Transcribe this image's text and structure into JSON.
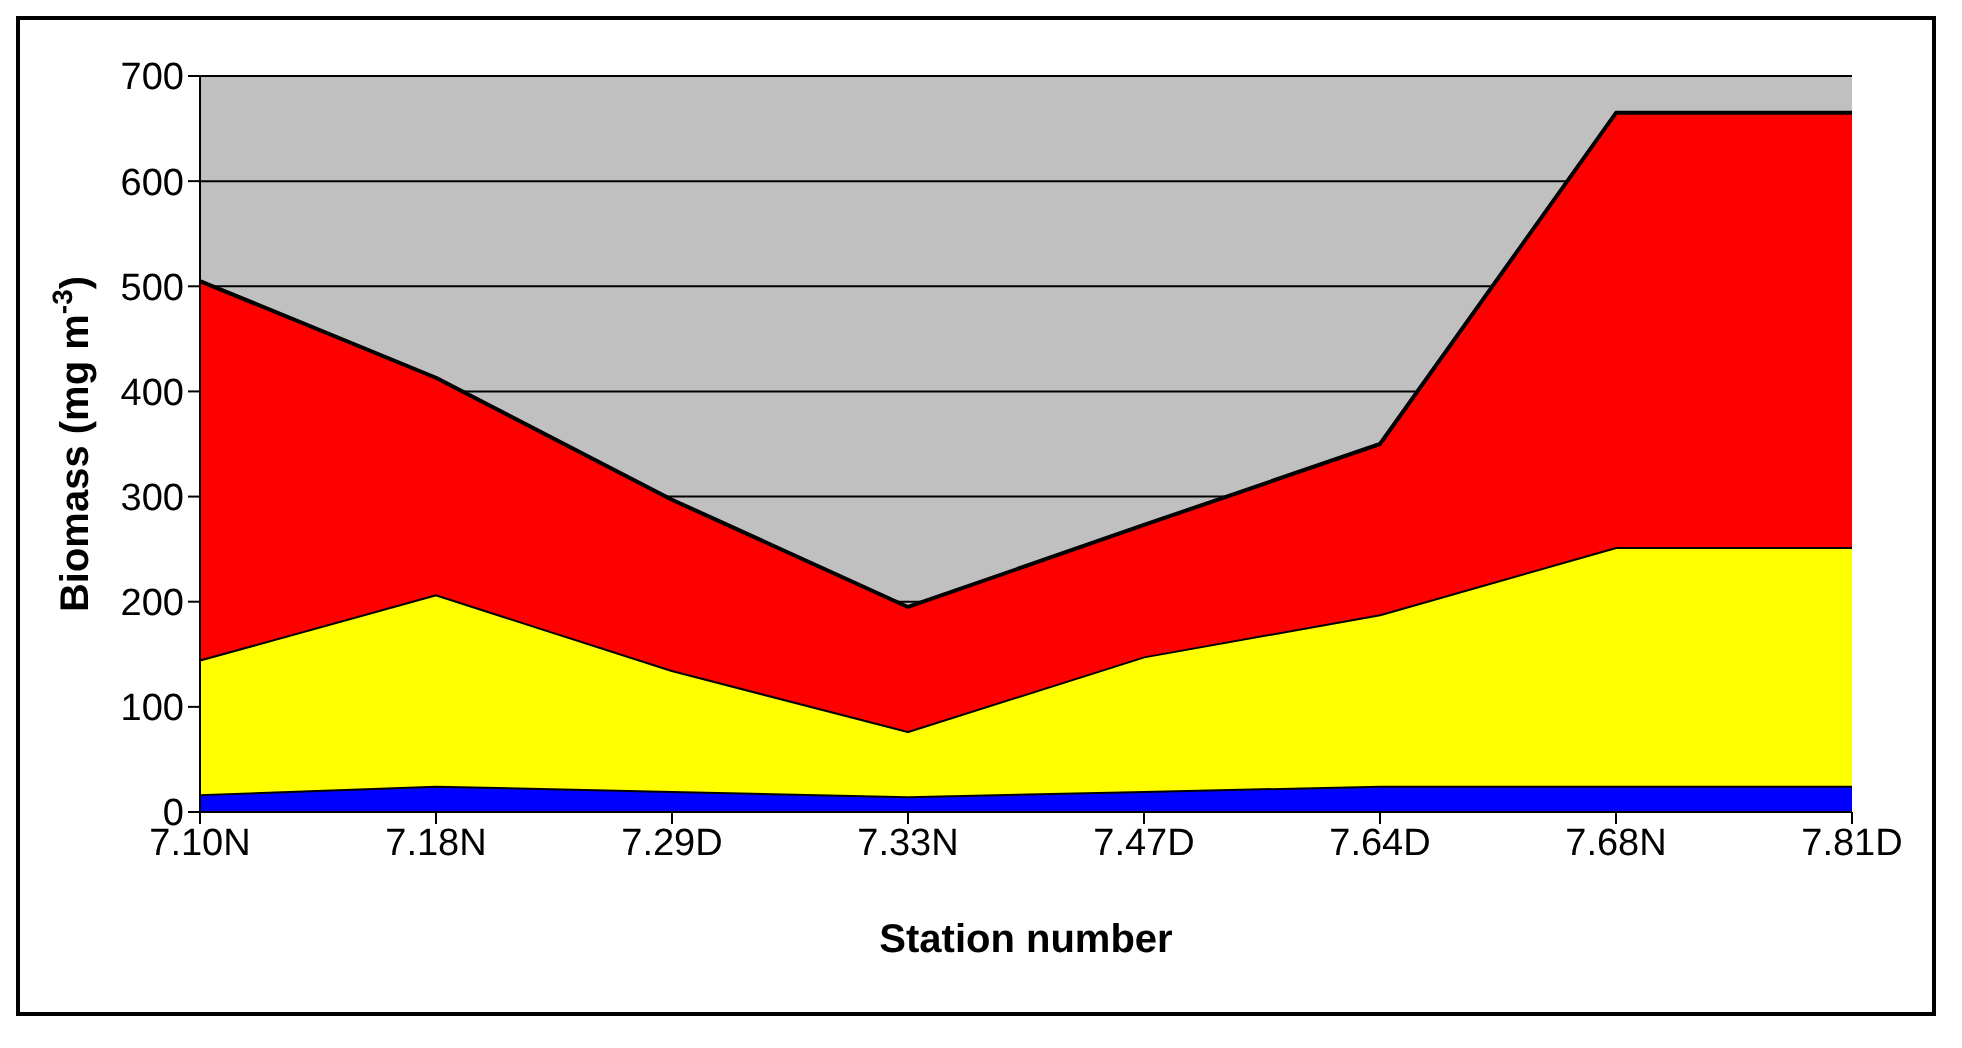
{
  "chart_data": {
    "type": "area",
    "stacked": true,
    "xlabel": "Station number",
    "ylabel": "Biomass (mg m$^{-3}$)",
    "categories": [
      "7.10N",
      "7.18N",
      "7.29D",
      "7.33N",
      "7.47D",
      "7.64D",
      "7.68N",
      "7.81D"
    ],
    "series": [
      {
        "color": "#0000ff",
        "values": [
          17,
          25,
          20,
          15,
          20,
          25,
          25,
          25
        ]
      },
      {
        "color": "#ffff00",
        "values": [
          128,
          182,
          115,
          62,
          128,
          163,
          227,
          227
        ]
      },
      {
        "color": "#ff0000",
        "values": [
          360,
          206,
          162,
          118,
          125,
          162,
          413,
          413
        ]
      }
    ],
    "ylim": [
      0,
      700
    ],
    "yticks": [
      0,
      100,
      200,
      300,
      400,
      500,
      600,
      700
    ],
    "grid": "y"
  }
}
